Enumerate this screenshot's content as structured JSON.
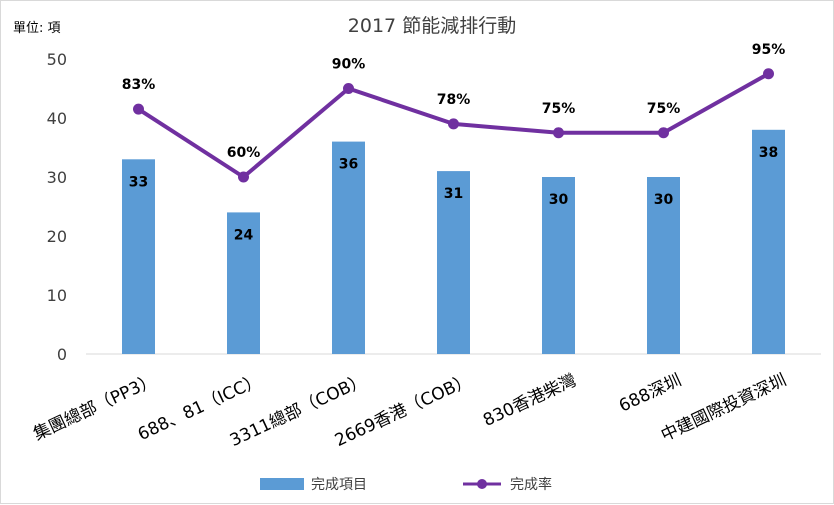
{
  "chart_data": {
    "type": "bar+line",
    "title": "2017 節能減排行動",
    "unit_label": "單位: 項",
    "categories": [
      "集團總部（PP3）",
      "688、81（ICC）",
      "3311總部（COB）",
      "2669香港（COB）",
      "830香港柴灣",
      "688深圳",
      "中建國際投資深圳"
    ],
    "ylim": [
      0,
      50
    ],
    "yticks": [
      0,
      10,
      20,
      30,
      40,
      50
    ],
    "series": [
      {
        "name": "完成項目",
        "type": "bar",
        "color": "#5b9bd5",
        "values": [
          33,
          24,
          36,
          31,
          30,
          30,
          38
        ],
        "labels": [
          "33",
          "24",
          "36",
          "31",
          "30",
          "30",
          "38"
        ]
      },
      {
        "name": "完成率",
        "type": "line",
        "color": "#7030a0",
        "values": [
          83,
          60,
          90,
          78,
          75,
          75,
          95
        ],
        "labels": [
          "83%",
          "60%",
          "90%",
          "78%",
          "75%",
          "75%",
          "95%"
        ]
      }
    ],
    "legend_position": "bottom",
    "grid": false
  }
}
